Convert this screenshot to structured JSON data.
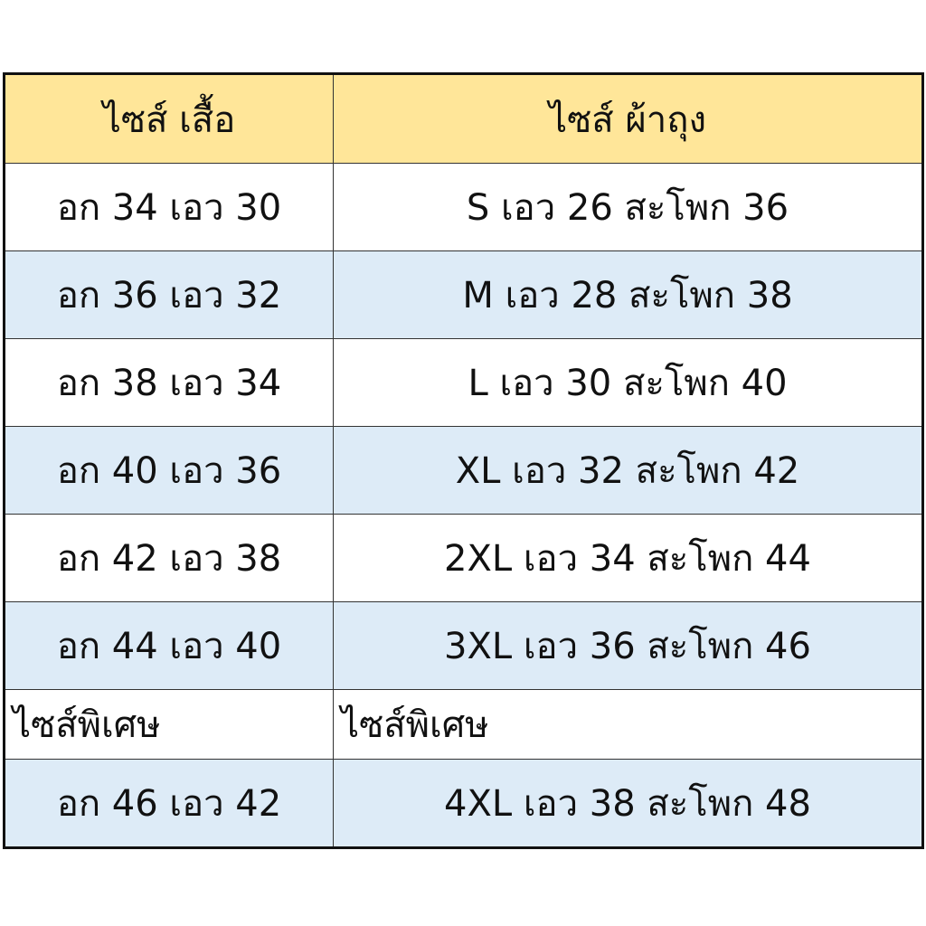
{
  "header": {
    "shirt": "ไซส์ เสื้อ",
    "sarong": "ไซส์ ผ้าถุง"
  },
  "rows": [
    {
      "shirt": "อก 34 เอว 30",
      "sarong": "S เอว 26 สะโพก 36"
    },
    {
      "shirt": "อก 36 เอว 32",
      "sarong": "M เอว 28 สะโพก 38"
    },
    {
      "shirt": "อก 38 เอว 34",
      "sarong": "L เอว 30 สะโพก 40"
    },
    {
      "shirt": "อก 40 เอว 36",
      "sarong": "XL เอว 32 สะโพก 42"
    },
    {
      "shirt": "อก 42 เอว 38",
      "sarong": "2XL เอว 34 สะโพก 44"
    },
    {
      "shirt": "อก 44 เอว 40",
      "sarong": "3XL เอว 36 สะโพก 46"
    }
  ],
  "special": {
    "shirt": "ไซส์พิเศษ",
    "sarong": "ไซส์พิเศษ"
  },
  "special_rows": [
    {
      "shirt": "อก 46 เอว 42",
      "sarong": "4XL เอว 38 สะโพก 48"
    }
  ],
  "colors": {
    "header_bg": "#FFE699",
    "band_bg": "#DDEBF7"
  }
}
